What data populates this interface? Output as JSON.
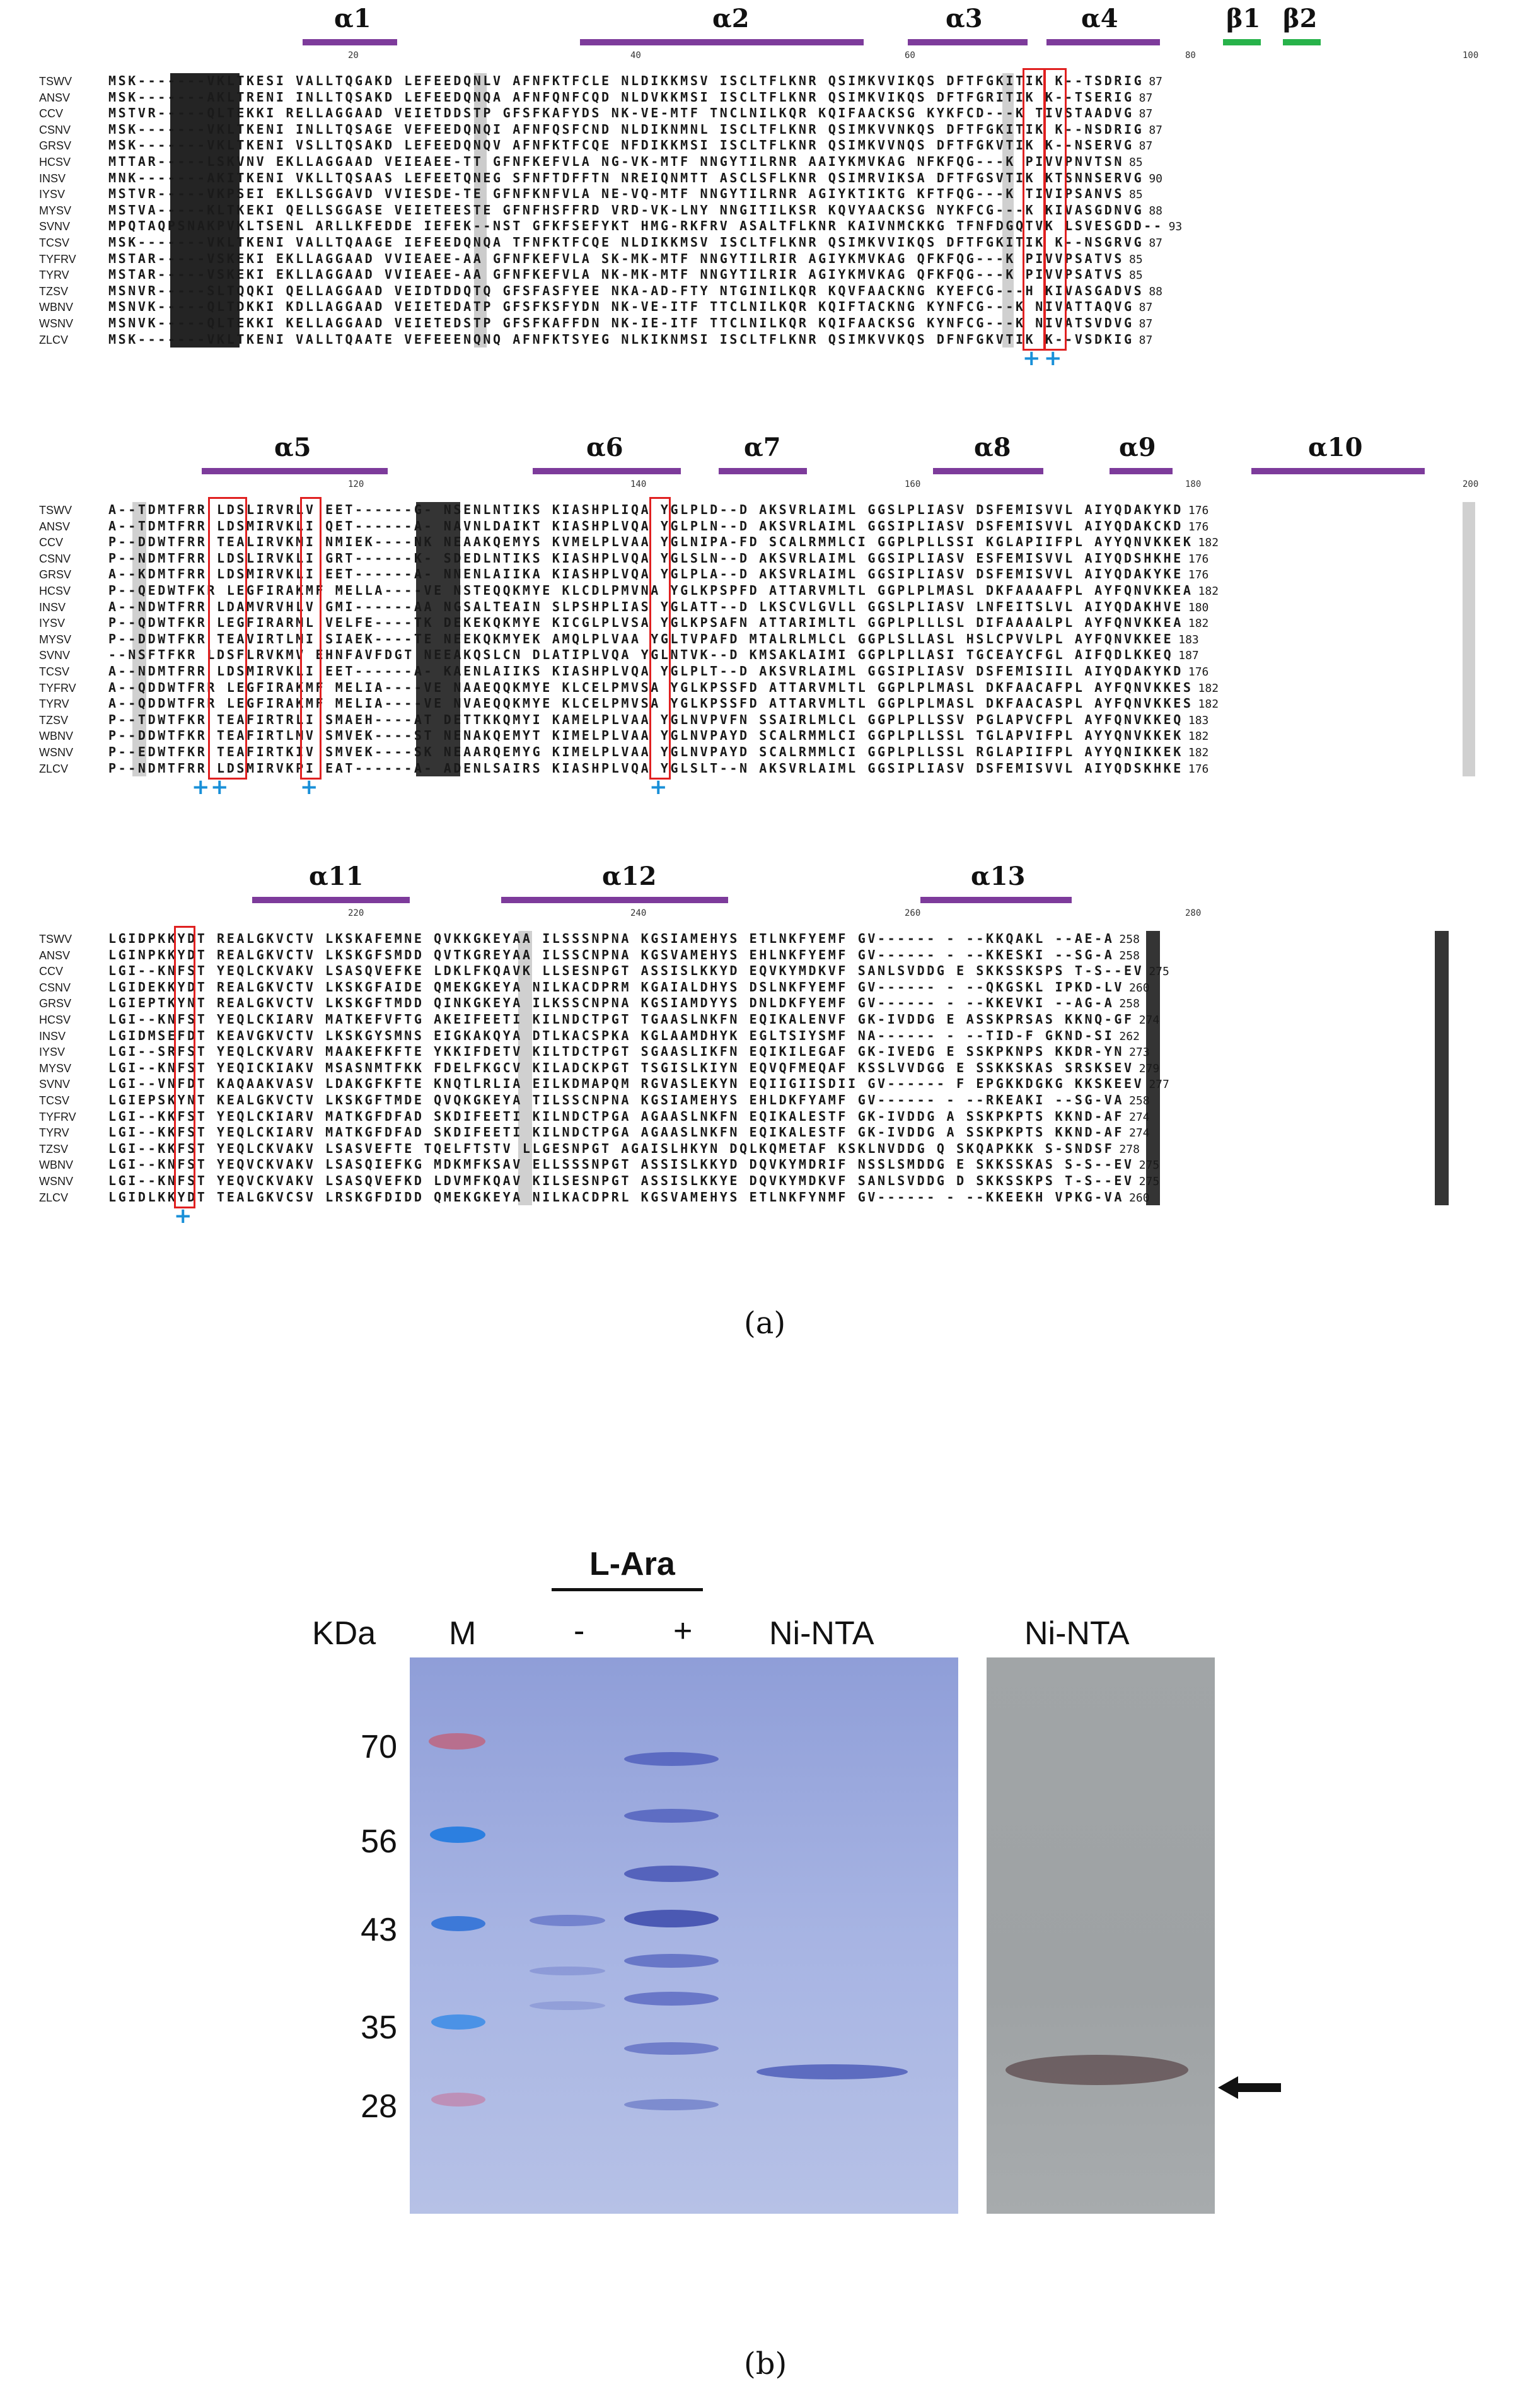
{
  "panel_a": {
    "caption": "(a)",
    "sequence_names": [
      "TSWV",
      "ANSV",
      "CCV",
      "CSNV",
      "GRSV",
      "HCSV",
      "INSV",
      "IYSV",
      "MYSV",
      "SVNV",
      "TCSV",
      "TYFRV",
      "TYRV",
      "TZSV",
      "WBNV",
      "WSNV",
      "ZLCV"
    ],
    "block1": {
      "structure_labels": [
        "α1",
        "α2",
        "α3",
        "α4",
        "β1",
        "β2"
      ],
      "ruler": [
        "20",
        "40",
        "60",
        "80",
        "100"
      ],
      "rows": [
        {
          "seq": "MSK-------VKLTKESI VALLTQGAKD LEFEEDQNLV AFNFKTFCLE NLDIKKMSV ISCLTFLKNR QSIMKVVIKQS DFTFGKITIK K--TSDRIG",
          "end": "87"
        },
        {
          "seq": "MSK-------AKLTRENI INLLTQSAKD LEFEEDQNQA AFNFQNFCQD NLDVKKMSI ISCLTFLKNR QSIMKVIKQS DFTFGRITIK K--TSERIG",
          "end": "87"
        },
        {
          "seq": "MSTVR-----QLTEKKI RELLAGGAAD VEIETDDSTP GFSFKAFYDS NK-VE-MTF TNCLNILKQR KQIFAACKSG KYKFCD---K TIVSTAADVG",
          "end": "87"
        },
        {
          "seq": "MSK-------VKLTKENI INLLTQSAGE VEFEEDQNQI AFNFQSFCND NLDIKNMNL ISCLTFLKNR QSIMKVVNKQS DFTFGKITIK K--NSDRIG",
          "end": "87"
        },
        {
          "seq": "MSK-------VKLTKENI VSLLTQSAKD LEFEEDQNQV AFNFKTFCQE NFDIKKMSI ISCLTFLKNR QSIMKVVNQS DFTFGKVTIK K--NSERVG",
          "end": "87"
        },
        {
          "seq": "MTTAR-----LSKVNV EKLLAGGAAD VEIEAEE-TT GFNFKEFVLA NG-VK-MTF NNGYTILRNR AAIYKMVKAG NFKFQG---K PIVVPNVTSN",
          "end": "85"
        },
        {
          "seq": "MNK-------AKITKENI VKLLTQSAAS LEFEETQNEG SFNFTDFFTN NREIQNMTT ASCLSFLKNR QSIMRVIKSA DFTFGSVTIK KTSNNSERVG",
          "end": "90"
        },
        {
          "seq": "MSTVR-----VKPSEI EKLLSGGAVD VVIESDE-TE GFNFKNFVLA NE-VQ-MTF NNGYTILRNR AGIYKTIKTG KFTFQG---K TIVIPSANVS",
          "end": "85"
        },
        {
          "seq": "MSTVA-----KLTKEKI QELLSGGASE VEIETEESTE GFNFHSFFRD VRD-VK-LNY NNGITILKSR KQVYAACKSG NYKFCG---K KIVASGDNVG",
          "end": "88"
        },
        {
          "seq": "MPQTAQPSNAKPVKLTSENL ARLLKFEDDE IEFEK--NST GFKFSEFYKT HMG-RKFRV ASALTFLKNR KAIVNMCKKG TFNFDGQTVK LSVESGDD--",
          "end": "93"
        },
        {
          "seq": "MSK-------VKLTKENI VALLTQAAGE IEFEEDQNQA TFNFKTFCQE NLDIKKMSV ISCLTFLKNR QSIMKVVIKQS DFTFGKITIK K--NSGRVG",
          "end": "87"
        },
        {
          "seq": "MSTAR-----VSKEKI EKLLAGGAAD VVIEAEE-AA GFNFKEFVLA SK-MK-MTF NNGYTILRIR AGIYKMVKAG QFKFQG---K PIVVPSATVS",
          "end": "85"
        },
        {
          "seq": "MSTAR-----VSKEKI EKLLAGGAAD VVIEAEE-AA GFNFKEFVLA NK-MK-MTF NNGYTILRIR AGIYKMVKAG QFKFQG---K PIVVPSATVS",
          "end": "85"
        },
        {
          "seq": "MSNVR-----SLTQQKI QELLAGGAAD VEIDTDDQTQ GFSFASFYEE NKA-AD-FTY NTGINILKQR KQVFAACKNG KYEFCG---H KIVASGADVS",
          "end": "88"
        },
        {
          "seq": "MSNVK-----QLTDKKI KDLLAGGAAD VEIETEDATP GFSFKSFYDN NK-VE-ITF TTCLNILKQR KQIFTACKNG KYNFCG---K NIVATTAQVG",
          "end": "87"
        },
        {
          "seq": "MSNVK-----QLTEKKI KELLAGGAAD VEIETEDSTP GFSFKAFFDN NK-IE-ITF TTCLNILKQR KQIFAACKSG KYNFCG---K NIVATSVDVG",
          "end": "87"
        },
        {
          "seq": "MSK-------VKLTKENI VALLTQAATE VEFEEENQNQ AFNFKTSYEG NLKIKNMSI ISCLTFLKNR QSIMKVVKQS DFNFGKVTIK K--VSDKIG",
          "end": "87"
        }
      ]
    },
    "block2": {
      "structure_labels": [
        "α5",
        "α6",
        "α7",
        "α8",
        "α9",
        "α10"
      ],
      "ruler": [
        "120",
        "140",
        "160",
        "180",
        "200"
      ],
      "rows": [
        {
          "seq": "A--TDMTFRR LDSLIRVRLV EET------G- NSENLNTIKS KIASHPLIQA YGLPLD--D AKSVRLAIML GGSLPLIASV DSFEMISVVL AIYQDAKYKD",
          "end": "176"
        },
        {
          "seq": "A--TDMTFRR LDSMIRVKLI QET------A- NAVNLDAIKT KIASHPLVQA YGLPLN--D AKSVRLAIML GGSIPLIASV DSFEMISVVL AIYQDAKCKD",
          "end": "176"
        },
        {
          "seq": "P--DDWTFRR TEALIRVKMI NMIEK----NK NEAAKQEMYS KVMELPLVAA YGLNIPA-FD SCALRMMLCI GGPLPLLSSI KGLAPIIFPL AYYQNVKKEK",
          "end": "182"
        },
        {
          "seq": "P--NDMTFRR LDSLIRVKLI GRT------K- SDEDLNTIKS KIASHPLVQA YGLSLN--D AKSVRLAIML GGSIPLIASV ESFEMISVVL AIYQDSHKHE",
          "end": "176"
        },
        {
          "seq": "A--KDMTFRR LDSMIRVKLI EET------A- NNENLAIIKA KIASHPLVQA YGLPLA--D AKSVRLAIML GGSIPLIASV DSFEMISVVL AIYQDAKYKE",
          "end": "176"
        },
        {
          "seq": "P--QEDWTFKR LEGFIRAKMF MELLA----VE NSTEQQKMYE KLCDLPMVNA YGLKPSPFD ATTARVMLTL GGPLPLMASL DKFAAAAFPL AYFQNVKKEA",
          "end": "182"
        },
        {
          "seq": "A--NDWTFRR LDAMVRVHLV GMI------AA NGSALTEAIN SLPSHPLIAS YGLATT--D LKSCVLGVLL GGSLPLIASV LNFEITSLVL AIYQDAKHVE",
          "end": "180"
        },
        {
          "seq": "P--QDWTFKR LEGFIRARML VELFE----TK DEKEKQKMYE KICGLPLVSA YGLKPSAFN ATTARIMLTL GGPLPLLLSL DIFAAAALPL AYFQNVKKEA",
          "end": "182"
        },
        {
          "seq": "P--DDWTFKR TEAVIRTLMI SIAEK----TE NEEKQKMYEK AMQLPLVAA YGLTVPAFD MTALRLMLCL GGPLSLLASL HSLCPVVLPL AYFQNVKKEE",
          "end": "183"
        },
        {
          "seq": "--NSFTFKR LDSFLRVKMV EHNFAVFDGT NEEAKQSLCN DLATIPLVQA YGLNTVK--D KMSAKLAIMI GGPLPLLASI TGCEAYCFGL AIFQDLKKEQ",
          "end": "187"
        },
        {
          "seq": "A--NDMTFRR LDSMIRVKLI EET------A- KAENLAIIKS KIASHPLVQA YGLPLT--D AKSVRLAIML GGSIPLIASV DSFEMISIIL AIYQDAKYKD",
          "end": "176"
        },
        {
          "seq": "A--QDDWTFRR LEGFIRAKMF MELIA----VE NAAEQQKMYE KLCELPMVSA YGLKPSSFD ATTARVMLTL GGPLPLMASL DKFAACAFPL AYFQNVKKES",
          "end": "182"
        },
        {
          "seq": "A--QDDWTFRR LEGFIRAKMF MELIA----VE NVAEQQKMYE KLCELPMVSA YGLKPSSFD ATTARVMLTL GGPLPLMASL DKFAACASPL AYFQNVKKES",
          "end": "182"
        },
        {
          "seq": "P--TDWTFKR TEAFIRTRLI SMAEH----AT DETTKKQMYI KAMELPLVAA YGLNVPVFN SSAIRLMLCL GGPLPLLSSV PGLAPVCFPL AYFQNVKKEQ",
          "end": "183"
        },
        {
          "seq": "P--DDWTFKR TEAFIRTLMV SMVEK----ST NENAKQEMYT KIMELPLVAA YGLNVPAYD SCALRMMLCI GGPLPLLSSL TGLAPVIFPL AYYQNVKKEK",
          "end": "182"
        },
        {
          "seq": "P--EDWTFKR TEAFIRTKIV SMVEK----SK NEAARQEMYG KIMELPLVAA YGLNVPAYD SCALRMMLCI GGPLPLLSSL RGLAPIIFPL AYYQNIKKEK",
          "end": "182"
        },
        {
          "seq": "P--NDMTFRR LDSMIRVKPI EAT------A- ADENLSAIRS KIASHPLVQA YGLSLT--N AKSVRLAIML GGSIPLIASV DSFEMISVVL AIYQDSKHKE",
          "end": "176"
        }
      ]
    },
    "block3": {
      "structure_labels": [
        "α11",
        "α12",
        "α13"
      ],
      "ruler": [
        "220",
        "240",
        "260",
        "280"
      ],
      "rows": [
        {
          "seq": "LGIDPKKYDT REALGKVCTV LKSKAFEMNE QVKKGKEYAA ILSSSNPNA KGSIAMEHYS ETLNKFYEMF GV------ - --KKQAKL --AE-A",
          "end": "258"
        },
        {
          "seq": "LGINPKKYDT REALGKVCTV LKSKGFSMDD QVTKGREYAA ILSSCNPNA KGSVAMEHYS EHLNKFYEMF GV------ - --KKESKI --SG-A",
          "end": "258"
        },
        {
          "seq": "LGI--KNFST YEQLCKVAKV LSASQVEFKE LDKLFKQAVK LLSESNPGT ASSISLKKYD EQVKYMDKVF SANLSVDDG E SKKSSKSPS T-S--EV",
          "end": "275"
        },
        {
          "seq": "LGIDEKKYDT REALGKVCTV LKSKGFAIDE QMEKGKEYA NILKACDPRM KGAIALDHYS DSLNKFYEMF GV------ - --QKGSKL IPKD-LV",
          "end": "260"
        },
        {
          "seq": "LGIEPTKYNT REALGKVCTV LKSKGFTMDD QINKGKEYA ILKSSCNPNA KGSIAMDYYS DNLDKFYEMF GV------ - --KKEVKI --AG-A",
          "end": "258"
        },
        {
          "seq": "LGI--KNFST YEQLCKIARV MATKEFVFTG AKEIFEETI KILNDCTPGT TGAASLNKFN EQIKALENVF GK-IVDDG E ASSKPRSAS KKNQ-GF",
          "end": "274"
        },
        {
          "seq": "LGIDMSEFDT KEAVGKVCTV LKSKGYSMNS EIGKAKQYA DTLKACSPKA KGLAAMDHYK EGLTSIYSMF NA------ - --TID-F GKND-SI",
          "end": "262"
        },
        {
          "seq": "LGI--SRFST YEQLCKVARV MAAKEFKFTE YKKIFDETV KILTDCTPGT SGAASLIKFN EQIKILEGAF GK-IVEDG E SSKPKNPS KKDR-YN",
          "end": "273"
        },
        {
          "seq": "LGI--KNFST YEQICKIAKV MSASNMTFKK FDELFKGCV KILADCKPGT TSGISLKIYN EQVQFMEQAF KSSLVVDGG E SSKKSKAS SRSKSEV",
          "end": "279"
        },
        {
          "seq": "LGI--VNFDT KAQAAKVASV LDAKGFKFTE KNQTLRLIA EILKDMAPQM RGVASLEKYN EQIIGIISDII GV------ F EPGKKDGKG KKSKEEV",
          "end": "277"
        },
        {
          "seq": "LGIEPSKYNT KEALGKVCTV LKSKGFTMDE QVQKGKEYA TILSSCNPNA KGSIAMEHYS EHLDKFYAMF GV------ - --RKEAKI --SG-VA",
          "end": "258"
        },
        {
          "seq": "LGI--KKFST YEQLCKIARV MATKGFDFAD SKDIFEETI KILNDCTPGA AGAASLNKFN EQIKALESTF GK-IVDDG A SSKPKPTS KKND-AF",
          "end": "274"
        },
        {
          "seq": "LGI--KKFST YEQLCKIARV MATKGFDFAD SKDIFEETI KILNDCTPGA AGAASLNKFN EQIKALESTF GK-IVDDG A SSKPKPTS KKND-AF",
          "end": "274"
        },
        {
          "seq": "LGI--KKFST YEQLCKVAKV LSASVEFTE TQELFTSTV LLGESNPGT AGAISLHKYN DQLKQMETAF KSKLNVDDG Q SKQAPKKK S-SNDSF",
          "end": "278"
        },
        {
          "seq": "LGI--KNFST YEQVCKVAKV LSASQIEFKG MDKMFKSAV ELLSSSNPGT ASSISLKKYD DQVKYMDRIF NSSLSMDDG E SKKSSKAS S-S--EV",
          "end": "275"
        },
        {
          "seq": "LGI--KNFST YEQVCKVAKV LSASQVEFKD LDVMFKQAV KILSESNPGT ASSISLKKYE DQVKYMDKVF SANLSVDDG D SKKSSKPS T-S--EV",
          "end": "275"
        },
        {
          "seq": "LGIDLKKYDT TEALGKVCSV LRSKGFDIDD QMEKGKEYA NILKACDPRL KGSVAMEHYS ETLNKFYNMF GV------ - --KKEEKH VPKG-VA",
          "end": "260"
        }
      ]
    }
  },
  "panel_b": {
    "caption": "(b)",
    "l_ara_label": "L-Ara",
    "lane_labels": {
      "kda": "KDa",
      "marker": "M",
      "minus": "-",
      "plus": "+",
      "ni_nta_1": "Ni-NTA",
      "ni_nta_2": "Ni-NTA"
    },
    "mw_markers": [
      "70",
      "56",
      "43",
      "35",
      "28"
    ],
    "arrow_target": "band-arrow"
  },
  "colors": {
    "alpha_helix": "#7d3b9b",
    "beta_strand": "#27b24a",
    "box": "#e02020",
    "plus_marker": "#1a90d8",
    "gel_bg": "#a9b6e0",
    "blot_bg": "#9fa3a6"
  }
}
